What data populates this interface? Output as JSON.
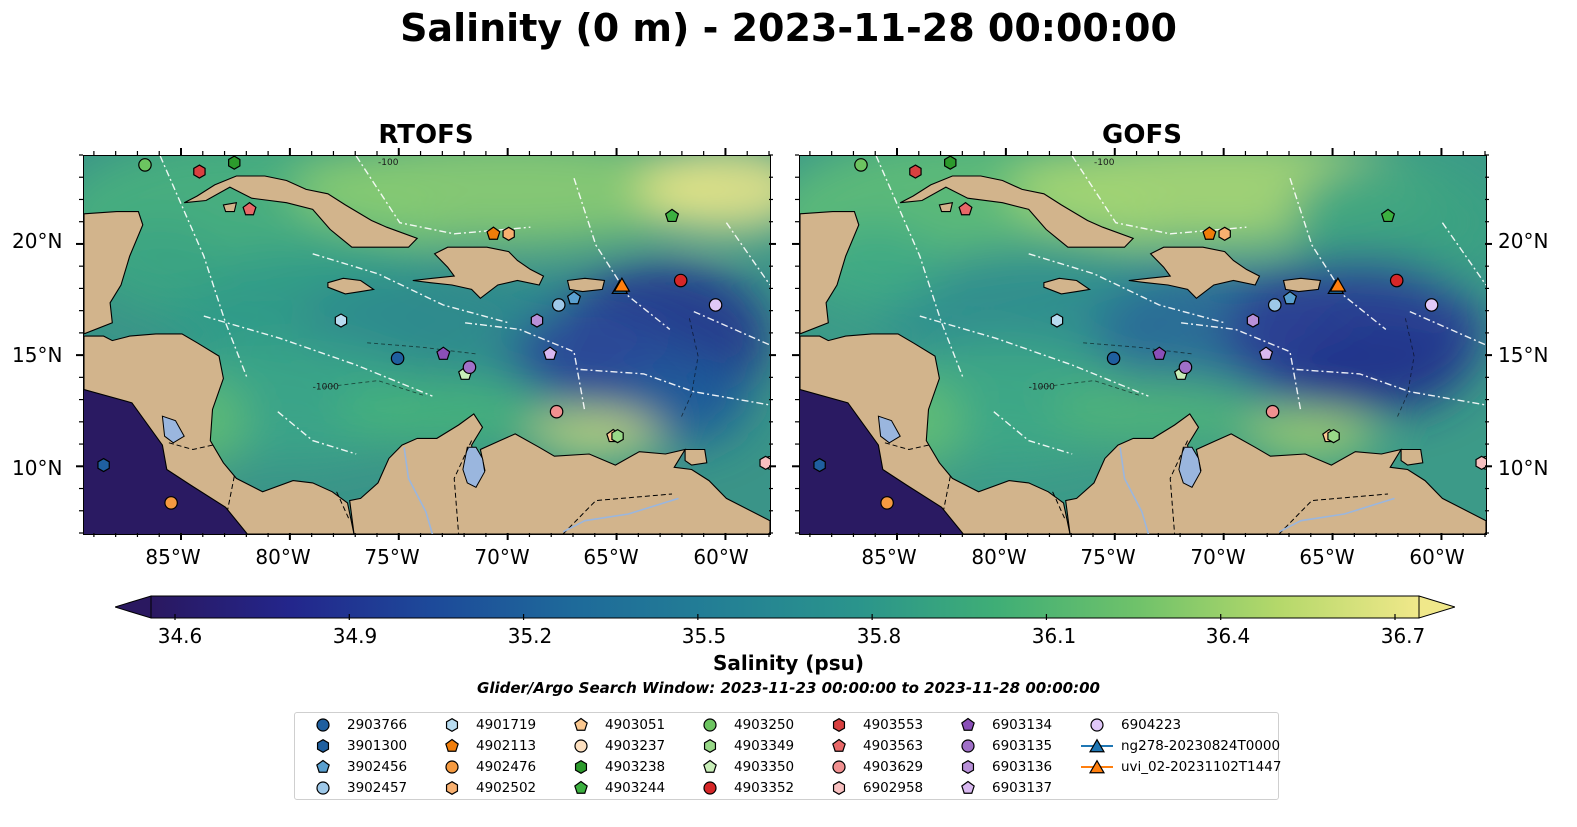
{
  "title": "Salinity (0 m) - 2023-11-28 00:00:00",
  "panels": [
    {
      "title": "RTOFS"
    },
    {
      "title": "GOFS"
    }
  ],
  "map": {
    "lat_labels": [
      "20°N",
      "15°N",
      "10°N"
    ],
    "lon_labels": [
      "85°W",
      "80°W",
      "75°W",
      "70°W",
      "65°W",
      "60°W"
    ],
    "extent": {
      "lon": [
        -89.5,
        -58.0
      ],
      "lat": [
        7.0,
        24.0
      ]
    },
    "land_color": "#d2b48c",
    "lake_color": "#9ab6de",
    "contour_labels": [
      "-100",
      "-1000"
    ]
  },
  "colorbar": {
    "label": "Salinity (psu)",
    "ticks": [
      "34.6",
      "34.9",
      "35.2",
      "35.5",
      "35.8",
      "36.1",
      "36.4",
      "36.7"
    ],
    "range": [
      34.6,
      36.7
    ],
    "extend": "both",
    "colormap": [
      "#2a1860",
      "#23268c",
      "#1d4a9a",
      "#1e6a9a",
      "#237f95",
      "#2a948c",
      "#3fae76",
      "#6fc26a",
      "#b4d86a",
      "#f0e88a"
    ]
  },
  "search_window": "Glider/Argo Search Window: 2023-11-23 00:00:00 to 2023-11-28 00:00:00",
  "legend": {
    "columns": [
      [
        {
          "label": "2903766",
          "marker": "circle",
          "color": "#1f5f9f"
        },
        {
          "label": "3901300",
          "marker": "hexagon",
          "color": "#1f5f9f"
        },
        {
          "label": "3902456",
          "marker": "pentagon",
          "color": "#5aa0d0"
        },
        {
          "label": "3902457",
          "marker": "circle",
          "color": "#9ec8e8"
        }
      ],
      [
        {
          "label": "4901719",
          "marker": "hexagon",
          "color": "#b8dcf0"
        },
        {
          "label": "4902113",
          "marker": "pentagon",
          "color": "#f07d0a"
        },
        {
          "label": "4902476",
          "marker": "circle",
          "color": "#f59a40"
        },
        {
          "label": "4902502",
          "marker": "hexagon",
          "color": "#f8b070"
        }
      ],
      [
        {
          "label": "4903051",
          "marker": "pentagon",
          "color": "#fbc890"
        },
        {
          "label": "4903237",
          "marker": "circle",
          "color": "#fde0c0"
        },
        {
          "label": "4903238",
          "marker": "hexagon",
          "color": "#2c9a2c"
        },
        {
          "label": "4903244",
          "marker": "pentagon",
          "color": "#3cb040"
        }
      ],
      [
        {
          "label": "4903250",
          "marker": "circle",
          "color": "#6cc460"
        },
        {
          "label": "4903349",
          "marker": "hexagon",
          "color": "#98d888"
        },
        {
          "label": "4903350",
          "marker": "pentagon",
          "color": "#c8eeb8"
        },
        {
          "label": "4903352",
          "marker": "circle",
          "color": "#d62728"
        }
      ],
      [
        {
          "label": "4903553",
          "marker": "hexagon",
          "color": "#d84040"
        },
        {
          "label": "4903563",
          "marker": "pentagon",
          "color": "#e86868"
        },
        {
          "label": "4903629",
          "marker": "circle",
          "color": "#f09090"
        },
        {
          "label": "6902958",
          "marker": "hexagon",
          "color": "#f8c0c0"
        }
      ],
      [
        {
          "label": "6903134",
          "marker": "pentagon",
          "color": "#8a4fb8"
        },
        {
          "label": "6903135",
          "marker": "circle",
          "color": "#a070c8"
        },
        {
          "label": "6903136",
          "marker": "hexagon",
          "color": "#b890d8"
        },
        {
          "label": "6903137",
          "marker": "pentagon",
          "color": "#d8b8f0"
        }
      ],
      [
        {
          "label": "6904223",
          "marker": "circle",
          "color": "#e0c8f8"
        },
        {
          "label": "ng278-20230824T0000",
          "marker": "triangle-line",
          "color": "#1f77b4"
        },
        {
          "label": "uvi_02-20231102T1447",
          "marker": "triangle-line",
          "color": "#ff7f0e"
        }
      ]
    ]
  },
  "floats": [
    {
      "id": "2903766",
      "lon": -75.1,
      "lat": 14.9
    },
    {
      "id": "3901300",
      "lon": -88.6,
      "lat": 10.1
    },
    {
      "id": "3902456",
      "lon": -67.0,
      "lat": 17.6
    },
    {
      "id": "3902457",
      "lon": -67.7,
      "lat": 17.3
    },
    {
      "id": "4901719",
      "lon": -77.7,
      "lat": 16.6
    },
    {
      "id": "4902113",
      "lon": -70.7,
      "lat": 20.5
    },
    {
      "id": "4902476",
      "lon": -85.5,
      "lat": 8.4
    },
    {
      "id": "4902502",
      "lon": -70.0,
      "lat": 20.5
    },
    {
      "id": "4903051",
      "lon": -65.2,
      "lat": 11.4
    },
    {
      "id": "4903237",
      "lon": -58.0,
      "lat": 10.2
    },
    {
      "id": "4903238",
      "lon": -82.6,
      "lat": 23.7
    },
    {
      "id": "4903244",
      "lon": -62.5,
      "lat": 21.3
    },
    {
      "id": "4903250",
      "lon": -86.7,
      "lat": 23.6
    },
    {
      "id": "4903349",
      "lon": -65.0,
      "lat": 11.4
    },
    {
      "id": "4903350",
      "lon": -72.0,
      "lat": 14.2
    },
    {
      "id": "4903352",
      "lon": -62.1,
      "lat": 18.4
    },
    {
      "id": "4903553",
      "lon": -84.2,
      "lat": 23.3
    },
    {
      "id": "4903563",
      "lon": -81.9,
      "lat": 21.6
    },
    {
      "id": "4903629",
      "lon": -67.8,
      "lat": 12.5
    },
    {
      "id": "6902958",
      "lon": -58.2,
      "lat": 10.2
    },
    {
      "id": "6903134",
      "lon": -73.0,
      "lat": 15.1
    },
    {
      "id": "6903135",
      "lon": -71.8,
      "lat": 14.5
    },
    {
      "id": "6903136",
      "lon": -68.7,
      "lat": 16.6
    },
    {
      "id": "6903137",
      "lon": -68.1,
      "lat": 15.1
    },
    {
      "id": "6904223",
      "lon": -60.5,
      "lat": 17.3
    }
  ],
  "gliders": [
    {
      "id": "ng278-20230824T0000",
      "lon": -64.9,
      "lat": 18.1
    },
    {
      "id": "uvi_02-20231102T1447",
      "lon": -64.8,
      "lat": 18.2
    }
  ]
}
